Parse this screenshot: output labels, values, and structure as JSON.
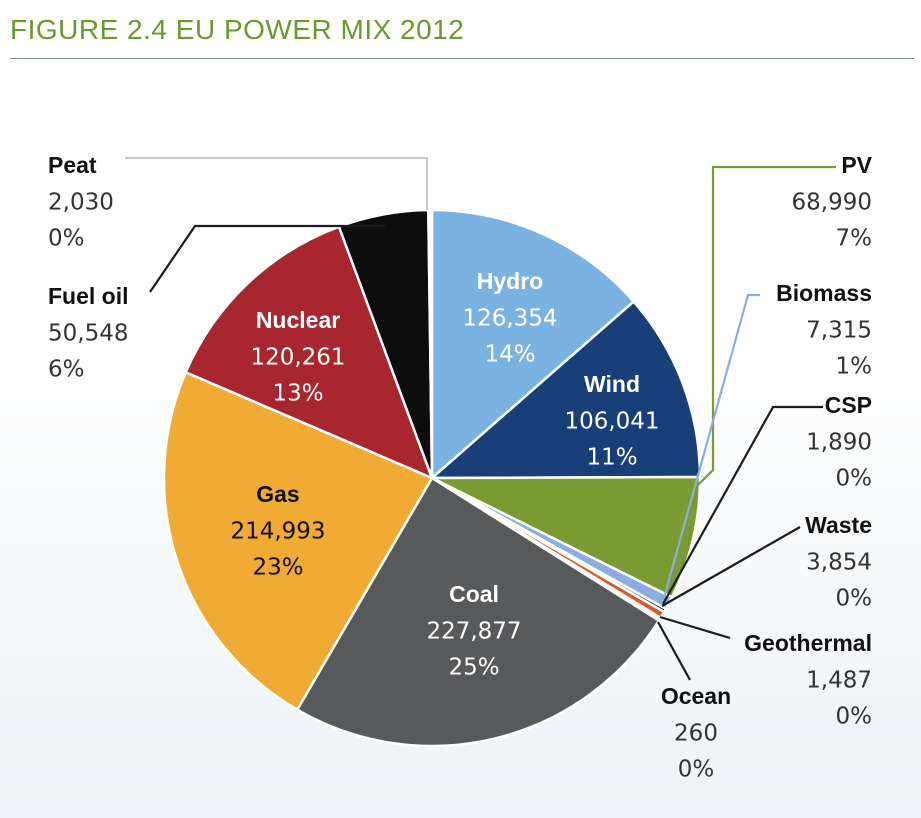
{
  "title": "FIGURE 2.4 EU POWER MIX 2012",
  "chart_data": {
    "type": "pie",
    "title": "FIGURE 2.4 EU POWER MIX 2012",
    "slices": [
      {
        "name": "Hydro",
        "value": 126354,
        "value_label": "126,354",
        "pct_label": "14%",
        "color": "#7ab3e2"
      },
      {
        "name": "Wind",
        "value": 106041,
        "value_label": "106,041",
        "pct_label": "11%",
        "color": "#183f78"
      },
      {
        "name": "PV",
        "value": 68990,
        "value_label": "68,990",
        "pct_label": "7%",
        "color": "#7a9a32"
      },
      {
        "name": "Biomass",
        "value": 7315,
        "value_label": "7,315",
        "pct_label": "1%",
        "color": "#8aaee0"
      },
      {
        "name": "CSP",
        "value": 1890,
        "value_label": "1,890",
        "pct_label": "0%",
        "color": "#1c1c1c"
      },
      {
        "name": "Waste",
        "value": 3854,
        "value_label": "3,854",
        "pct_label": "0%",
        "color": "#d85a30"
      },
      {
        "name": "Geothermal",
        "value": 1487,
        "value_label": "1,487",
        "pct_label": "0%",
        "color": "#c0c0c0"
      },
      {
        "name": "Ocean",
        "value": 260,
        "value_label": "260",
        "pct_label": "0%",
        "color": "#f0f0f0"
      },
      {
        "name": "Coal",
        "value": 227877,
        "value_label": "227,877",
        "pct_label": "25%",
        "color": "#58595b"
      },
      {
        "name": "Gas",
        "value": 214993,
        "value_label": "214,993",
        "pct_label": "23%",
        "color": "#f0ab35"
      },
      {
        "name": "Nuclear",
        "value": 120261,
        "value_label": "120,261",
        "pct_label": "13%",
        "color": "#a8262e"
      },
      {
        "name": "Fuel oil",
        "value": 50548,
        "value_label": "50,548",
        "pct_label": "6%",
        "color": "#0d0d0d"
      },
      {
        "name": "Peat",
        "value": 2030,
        "value_label": "2,030",
        "pct_label": "0%",
        "color": "#ffffff"
      }
    ]
  }
}
